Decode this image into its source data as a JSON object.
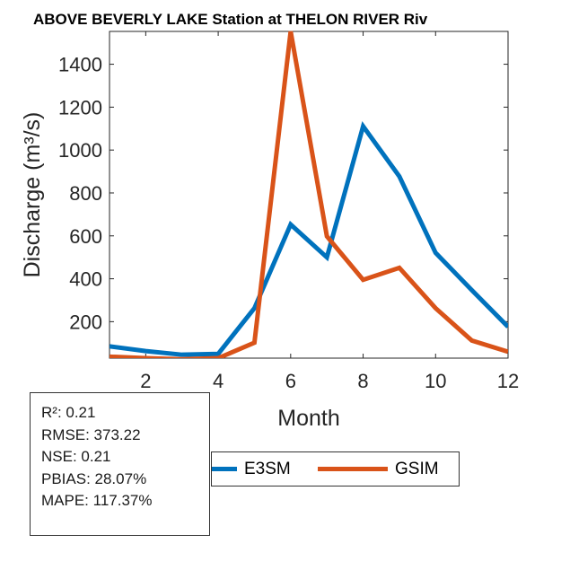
{
  "title": "ABOVE BEVERLY LAKE  Station at  THELON RIVER  Riv",
  "chart_data": {
    "type": "line",
    "xlabel": "Month",
    "ylabel": "Discharge (m³/s)",
    "x": [
      1,
      2,
      3,
      4,
      5,
      6,
      7,
      8,
      9,
      10,
      11,
      12
    ],
    "xlim": [
      1,
      12
    ],
    "ylim": [
      30,
      1553
    ],
    "xticks": [
      2,
      4,
      6,
      8,
      10,
      12
    ],
    "yticks": [
      200,
      400,
      600,
      800,
      1000,
      1200,
      1400
    ],
    "grid": false,
    "legend_position": "bottom",
    "series": [
      {
        "name": "E3SM",
        "color": "#0072BD",
        "values": [
          85,
          63,
          46,
          50,
          263,
          653,
          500,
          1111,
          877,
          521,
          347,
          176
        ]
      },
      {
        "name": "GSIM",
        "color": "#D95319",
        "values": [
          37,
          30,
          25,
          30,
          102,
          1553,
          598,
          395,
          451,
          263,
          112,
          60
        ]
      }
    ]
  },
  "stats": {
    "r2": "R²: 0.21",
    "rmse": "RMSE: 373.22",
    "nse": "NSE: 0.21",
    "pbias": "PBIAS: 28.07%",
    "mape": "MAPE: 117.37%"
  },
  "legend": {
    "e3sm": "E3SM",
    "gsim": "GSIM"
  }
}
